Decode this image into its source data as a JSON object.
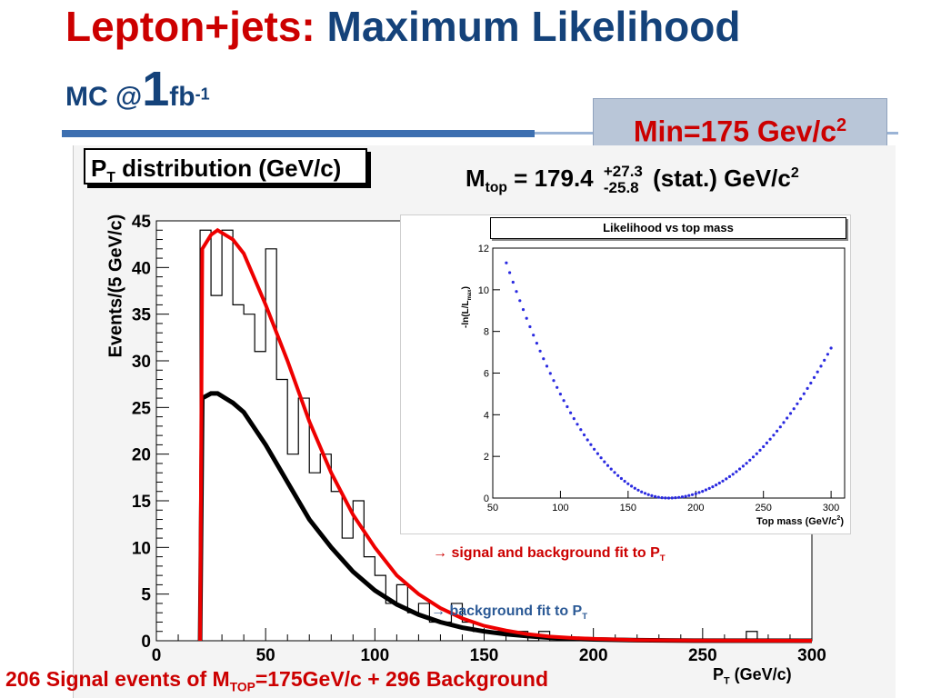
{
  "slide": {
    "title_red": "Lepton+jets:",
    "title_blue": "Maximum Likelihood",
    "subtitle_mc": "MC @",
    "subtitle_one": "1",
    "subtitle_fb": "fb",
    "subtitle_exp": "-1",
    "min_box_text": "Min=175 Gev/c",
    "min_box_exp": "2",
    "caption_pre": "206 Signal events of M",
    "caption_sub": "TOP",
    "caption_post": "=175GeV/c  + 296 Background"
  },
  "main_plot": {
    "title_p": "P",
    "title_sub": "T",
    "title_rest": " distribution (GeV/c)",
    "mtop_label": "M",
    "mtop_sub": "top",
    "mtop_value": "= 179.4",
    "mtop_plus": "+27.3",
    "mtop_minus": "-25.8",
    "mtop_units": "(stat.) GeV/c",
    "mtop_exp": "2",
    "ylabel": "Events/(5 GeV/c)",
    "xlabel_p": "P",
    "xlabel_sub": "T",
    "xlabel_rest": " (GeV/c)",
    "annotation_signal": "→ signal and background fit to P",
    "annotation_signal_sub": "T",
    "annotation_bkg": "→ background fit to P",
    "annotation_bkg_sub": "T",
    "colors": {
      "signal_fit": "#ee0000",
      "background_fit": "#000000",
      "histogram": "#000000"
    }
  },
  "chart_data": [
    {
      "type": "line",
      "xlim": [
        0,
        300
      ],
      "ylim": [
        0,
        45
      ],
      "x_ticks": [
        0,
        50,
        100,
        150,
        200,
        250,
        300
      ],
      "y_ticks": [
        0,
        5,
        10,
        15,
        20,
        25,
        30,
        35,
        40,
        45
      ],
      "histogram": {
        "bin_width": 5,
        "bin_edges_start": 20,
        "values": [
          44,
          37,
          44,
          36,
          35,
          31,
          42,
          28,
          20,
          26,
          18,
          20,
          16,
          11,
          15,
          9,
          7,
          4,
          6,
          3,
          4,
          2,
          2,
          4,
          2,
          1,
          1,
          1,
          1,
          1,
          0,
          1,
          0,
          0,
          0,
          0,
          0,
          0,
          0,
          0,
          0,
          0,
          0,
          0,
          0,
          0,
          0,
          0,
          0,
          0,
          1,
          0,
          0,
          0,
          0,
          0
        ]
      },
      "series": [
        {
          "x": [
            20,
            21,
            25,
            28,
            35,
            40,
            50,
            60,
            70,
            80,
            90,
            100,
            110,
            120,
            130,
            140,
            150,
            160,
            170,
            180,
            190,
            200,
            220,
            250,
            300
          ],
          "y": [
            0,
            42,
            43.5,
            44,
            43,
            41.5,
            36,
            30,
            23.5,
            18,
            13.5,
            10,
            7,
            5,
            3.5,
            2.4,
            1.6,
            1.1,
            0.7,
            0.45,
            0.3,
            0.2,
            0.08,
            0.02,
            0
          ]
        },
        {
          "x": [
            20,
            21,
            25,
            28,
            35,
            40,
            50,
            60,
            70,
            80,
            90,
            100,
            110,
            120,
            130,
            140,
            150,
            160,
            170,
            180,
            190,
            200,
            220,
            250,
            300
          ],
          "y": [
            0,
            26,
            26.5,
            26.5,
            25.5,
            24.5,
            21,
            17,
            13,
            10,
            7.4,
            5.4,
            3.9,
            2.8,
            2,
            1.4,
            1,
            0.7,
            0.5,
            0.33,
            0.22,
            0.15,
            0.06,
            0.01,
            0
          ]
        }
      ]
    },
    {
      "type": "scatter",
      "title": "Likelihood vs top mass",
      "xlabel": "Top mass (GeV/c",
      "xlabel_exp": "2",
      "xlabel_close": ")",
      "ylabel": "-ln(L/L",
      "ylabel_sub": "max",
      "ylabel_close": ")",
      "xlim": [
        50,
        310
      ],
      "ylim": [
        0,
        12
      ],
      "x_ticks": [
        50,
        100,
        150,
        200,
        250,
        300
      ],
      "y_ticks": [
        0,
        2,
        4,
        6,
        8,
        10,
        12
      ],
      "color": "#2a2ae0",
      "curve": {
        "x_min": 60,
        "x_max": 300,
        "step": 2.5,
        "x_min_value": 179.4,
        "left_coef": 0.000792,
        "right_coef": 0.000495
      }
    }
  ]
}
